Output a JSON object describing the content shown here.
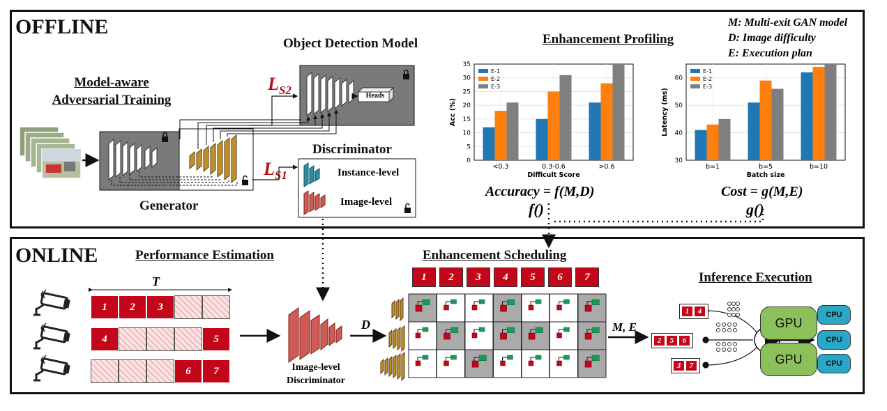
{
  "offline": {
    "title": "OFFLINE",
    "model_aware_training": [
      "Model-aware",
      "Adversarial Training"
    ],
    "object_detection_model": "Object Detection Model",
    "heads": "Heads",
    "generator": "Generator",
    "discriminator": "Discriminator",
    "instance_level": "Instance-level",
    "image_level": "Image-level",
    "loss_s2": {
      "main": "L",
      "sub": "S2"
    },
    "loss_s1": {
      "main": "L",
      "sub": "S1"
    },
    "enhancement_profiling": "Enhancement Profiling",
    "legend": [
      "M: Multi-exit GAN model",
      "D: Image difficulty",
      "E: Execution plan"
    ],
    "accuracy_formula": "Accuracy = f(M,D)",
    "cost_formula": "Cost = g(M,E)",
    "f_label": "f()",
    "g_label": "g()"
  },
  "online": {
    "title": "ONLINE",
    "performance_estimation": "Performance Estimation",
    "T_label": "T",
    "streams": [
      {
        "cells": [
          "1",
          "2",
          "3",
          "",
          ""
        ]
      },
      {
        "cells": [
          "4",
          "",
          "",
          "",
          "5"
        ]
      },
      {
        "cells": [
          "",
          "",
          "",
          "6",
          "7"
        ]
      }
    ],
    "image_level_discriminator": [
      "Image-level",
      "Discriminator"
    ],
    "D_label": "D",
    "enhancement_scheduling": "Enhancement Scheduling",
    "schedule_header": [
      "1",
      "2",
      "3",
      "4",
      "5",
      "6",
      "7"
    ],
    "schedule_gray": [
      [
        0,
        3,
        6
      ],
      [
        1,
        3,
        4,
        6
      ],
      [
        2,
        6
      ]
    ],
    "ME_label": "M, E",
    "inference_execution": "Inference Execution",
    "batches": [
      [
        "1",
        "4"
      ],
      [
        "2",
        "5",
        "6"
      ],
      [
        "3",
        "7"
      ]
    ],
    "gpu_label": "GPU",
    "cpu_label": "CPU"
  },
  "chart_data": [
    {
      "type": "bar",
      "categories": [
        "<0.3",
        "0.3-0.6",
        ">0.6"
      ],
      "series": [
        {
          "name": "E-1",
          "values": [
            12,
            15,
            21
          ]
        },
        {
          "name": "E-2",
          "values": [
            18,
            25,
            28
          ]
        },
        {
          "name": "E-3",
          "values": [
            21,
            31,
            35
          ]
        }
      ],
      "xlabel": "Difficult Score",
      "ylabel": "Acc (%)",
      "ylim": [
        0,
        35
      ],
      "yticks": [
        0,
        5,
        10,
        15,
        20,
        25,
        30,
        35
      ],
      "legend": "top-left",
      "grid": true,
      "colors": [
        "#1f77b4",
        "#ff7f0e",
        "#7f7f7f"
      ]
    },
    {
      "type": "bar",
      "categories": [
        "b=1",
        "b=5",
        "b=10"
      ],
      "series": [
        {
          "name": "E-1",
          "values": [
            41,
            51,
            62
          ]
        },
        {
          "name": "E-2",
          "values": [
            43,
            59,
            64
          ]
        },
        {
          "name": "E-3",
          "values": [
            45,
            56,
            65
          ]
        }
      ],
      "xlabel": "Batch size",
      "ylabel": "Latency (ms)",
      "ylim": [
        30,
        65
      ],
      "yticks": [
        30,
        40,
        50,
        60
      ],
      "legend": "top-left",
      "grid": true,
      "colors": [
        "#1f77b4",
        "#ff7f0e",
        "#7f7f7f"
      ]
    }
  ]
}
